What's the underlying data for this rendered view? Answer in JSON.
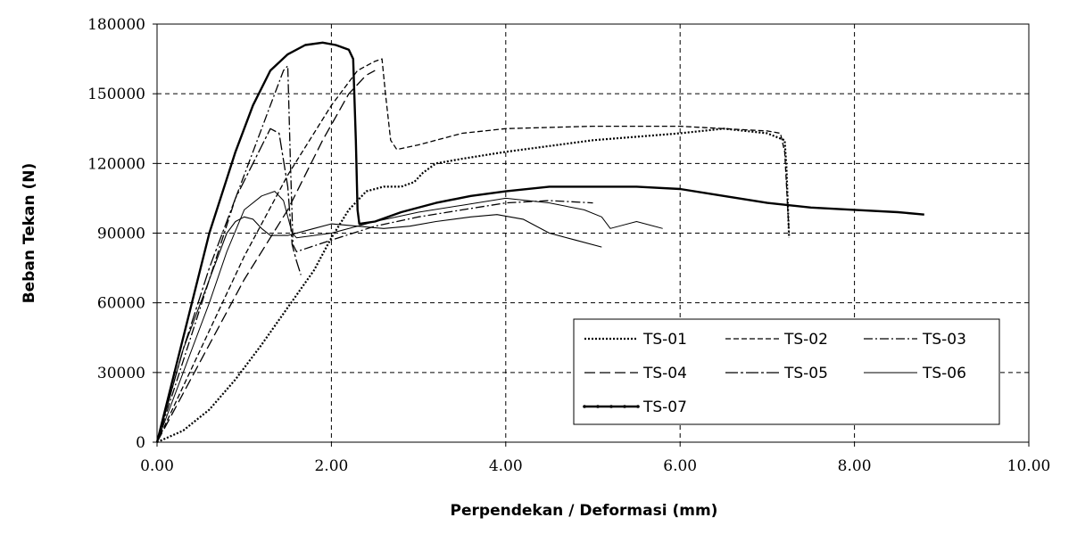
{
  "chart_data": {
    "type": "line",
    "title": "",
    "xlabel": "Perpendekan / Deformasi (mm)",
    "ylabel": "Beban Tekan (N)",
    "xlim": [
      0,
      10
    ],
    "ylim": [
      0,
      180000
    ],
    "xticks": [
      0,
      2,
      4,
      6,
      8,
      10
    ],
    "xtick_labels": [
      "0.00",
      "2.00",
      "4.00",
      "6.00",
      "8.00",
      "10.00"
    ],
    "yticks": [
      0,
      30000,
      60000,
      90000,
      120000,
      150000,
      180000
    ],
    "ytick_labels": [
      "0",
      "30000",
      "60000",
      "90000",
      "120000",
      "150000",
      "180000"
    ],
    "grid": true,
    "legend_position": "lower-right",
    "series": [
      {
        "name": "TS-01",
        "dash": "2,2",
        "width": 2.2,
        "points": [
          [
            0,
            0
          ],
          [
            0.3,
            5000
          ],
          [
            0.6,
            14000
          ],
          [
            0.9,
            27000
          ],
          [
            1.2,
            42000
          ],
          [
            1.5,
            58000
          ],
          [
            1.8,
            74000
          ],
          [
            2.0,
            88000
          ],
          [
            2.2,
            100000
          ],
          [
            2.4,
            108000
          ],
          [
            2.6,
            110000
          ],
          [
            2.8,
            110000
          ],
          [
            2.95,
            112000
          ],
          [
            3.05,
            116000
          ],
          [
            3.2,
            120000
          ],
          [
            3.5,
            122000
          ],
          [
            4.0,
            125000
          ],
          [
            5.0,
            130000
          ],
          [
            6.0,
            133000
          ],
          [
            6.5,
            135000
          ],
          [
            7.0,
            133000
          ],
          [
            7.2,
            130000
          ],
          [
            7.22,
            118000
          ],
          [
            7.25,
            88000
          ]
        ]
      },
      {
        "name": "TS-02",
        "dash": "6,3",
        "width": 1.3,
        "points": [
          [
            0,
            0
          ],
          [
            0.5,
            40000
          ],
          [
            1.0,
            80000
          ],
          [
            1.5,
            115000
          ],
          [
            2.0,
            145000
          ],
          [
            2.3,
            160000
          ],
          [
            2.5,
            164000
          ],
          [
            2.58,
            165000
          ],
          [
            2.62,
            150000
          ],
          [
            2.68,
            130000
          ],
          [
            2.75,
            126000
          ],
          [
            3.0,
            128000
          ],
          [
            3.5,
            133000
          ],
          [
            4.0,
            135000
          ],
          [
            5.0,
            136000
          ],
          [
            6.0,
            136000
          ],
          [
            6.5,
            135000
          ],
          [
            7.0,
            134000
          ],
          [
            7.15,
            133000
          ],
          [
            7.2,
            125000
          ],
          [
            7.25,
            90000
          ]
        ]
      },
      {
        "name": "TS-03",
        "dash": "10,3,2,3",
        "width": 1.3,
        "points": [
          [
            0,
            0
          ],
          [
            0.3,
            35000
          ],
          [
            0.6,
            70000
          ],
          [
            0.9,
            105000
          ],
          [
            1.1,
            125000
          ],
          [
            1.3,
            145000
          ],
          [
            1.45,
            160000
          ],
          [
            1.5,
            162000
          ],
          [
            1.53,
            120000
          ],
          [
            1.56,
            85000
          ],
          [
            1.6,
            82000
          ],
          [
            2.0,
            87000
          ],
          [
            2.5,
            93000
          ],
          [
            3.0,
            97000
          ],
          [
            3.5,
            100000
          ],
          [
            4.0,
            103000
          ],
          [
            4.5,
            104000
          ],
          [
            5.0,
            103000
          ]
        ]
      },
      {
        "name": "TS-04",
        "dash": "12,5",
        "width": 1.3,
        "points": [
          [
            0,
            0
          ],
          [
            0.5,
            35000
          ],
          [
            1.0,
            70000
          ],
          [
            1.5,
            100000
          ],
          [
            1.9,
            130000
          ],
          [
            2.2,
            150000
          ],
          [
            2.4,
            158000
          ],
          [
            2.5,
            160000
          ]
        ]
      },
      {
        "name": "TS-05",
        "dash": "14,3,3,3",
        "width": 1.3,
        "points": [
          [
            0,
            0
          ],
          [
            0.3,
            40000
          ],
          [
            0.6,
            75000
          ],
          [
            0.9,
            105000
          ],
          [
            1.1,
            120000
          ],
          [
            1.3,
            135000
          ],
          [
            1.4,
            133000
          ],
          [
            1.5,
            110000
          ],
          [
            1.55,
            85000
          ],
          [
            1.6,
            78000
          ],
          [
            1.65,
            72000
          ]
        ]
      },
      {
        "name": "TS-06",
        "dash": "",
        "width": 1.1,
        "points": [
          [
            0,
            0
          ],
          [
            0.3,
            40000
          ],
          [
            0.6,
            70000
          ],
          [
            0.8,
            90000
          ],
          [
            0.9,
            95000
          ],
          [
            1.0,
            97000
          ],
          [
            1.1,
            96000
          ],
          [
            1.2,
            92000
          ],
          [
            1.3,
            89000
          ],
          [
            1.5,
            89000
          ],
          [
            1.8,
            92000
          ],
          [
            2.0,
            94000
          ],
          [
            2.3,
            93000
          ],
          [
            2.6,
            92000
          ],
          [
            2.9,
            93000
          ],
          [
            3.2,
            95000
          ],
          [
            3.6,
            97000
          ],
          [
            3.9,
            98000
          ],
          [
            4.2,
            96000
          ],
          [
            4.5,
            90000
          ],
          [
            4.8,
            87000
          ],
          [
            5.1,
            84000
          ]
        ]
      },
      {
        "name": "TS-07",
        "dash": "",
        "width": 2.4,
        "points": [
          [
            0,
            0
          ],
          [
            0.3,
            45000
          ],
          [
            0.6,
            90000
          ],
          [
            0.9,
            125000
          ],
          [
            1.1,
            145000
          ],
          [
            1.3,
            160000
          ],
          [
            1.5,
            167000
          ],
          [
            1.7,
            171000
          ],
          [
            1.9,
            172000
          ],
          [
            2.05,
            171000
          ],
          [
            2.2,
            169000
          ],
          [
            2.25,
            165000
          ],
          [
            2.28,
            130000
          ],
          [
            2.3,
            100000
          ],
          [
            2.32,
            94000
          ],
          [
            2.5,
            95000
          ],
          [
            2.8,
            99000
          ],
          [
            3.2,
            103000
          ],
          [
            3.6,
            106000
          ],
          [
            4.0,
            108000
          ],
          [
            4.5,
            110000
          ],
          [
            5.0,
            110000
          ],
          [
            5.5,
            110000
          ],
          [
            6.0,
            109000
          ],
          [
            6.5,
            106000
          ],
          [
            7.0,
            103000
          ],
          [
            7.5,
            101000
          ],
          [
            8.0,
            100000
          ],
          [
            8.5,
            99000
          ],
          [
            8.8,
            98000
          ]
        ]
      }
    ],
    "thin_curve": {
      "name": "",
      "points": [
        [
          0,
          0
        ],
        [
          0.3,
          30000
        ],
        [
          0.6,
          60000
        ],
        [
          0.8,
          82000
        ],
        [
          1.0,
          100000
        ],
        [
          1.2,
          106000
        ],
        [
          1.35,
          108000
        ],
        [
          1.45,
          104000
        ],
        [
          1.55,
          90000
        ],
        [
          1.6,
          88000
        ],
        [
          2.0,
          90000
        ],
        [
          2.5,
          95000
        ],
        [
          3.0,
          99000
        ],
        [
          3.5,
          102000
        ],
        [
          4.0,
          105000
        ],
        [
          4.5,
          103000
        ],
        [
          4.9,
          100000
        ],
        [
          5.1,
          97000
        ],
        [
          5.2,
          92000
        ],
        [
          5.3,
          93000
        ],
        [
          5.5,
          95000
        ],
        [
          5.8,
          92000
        ]
      ]
    }
  }
}
